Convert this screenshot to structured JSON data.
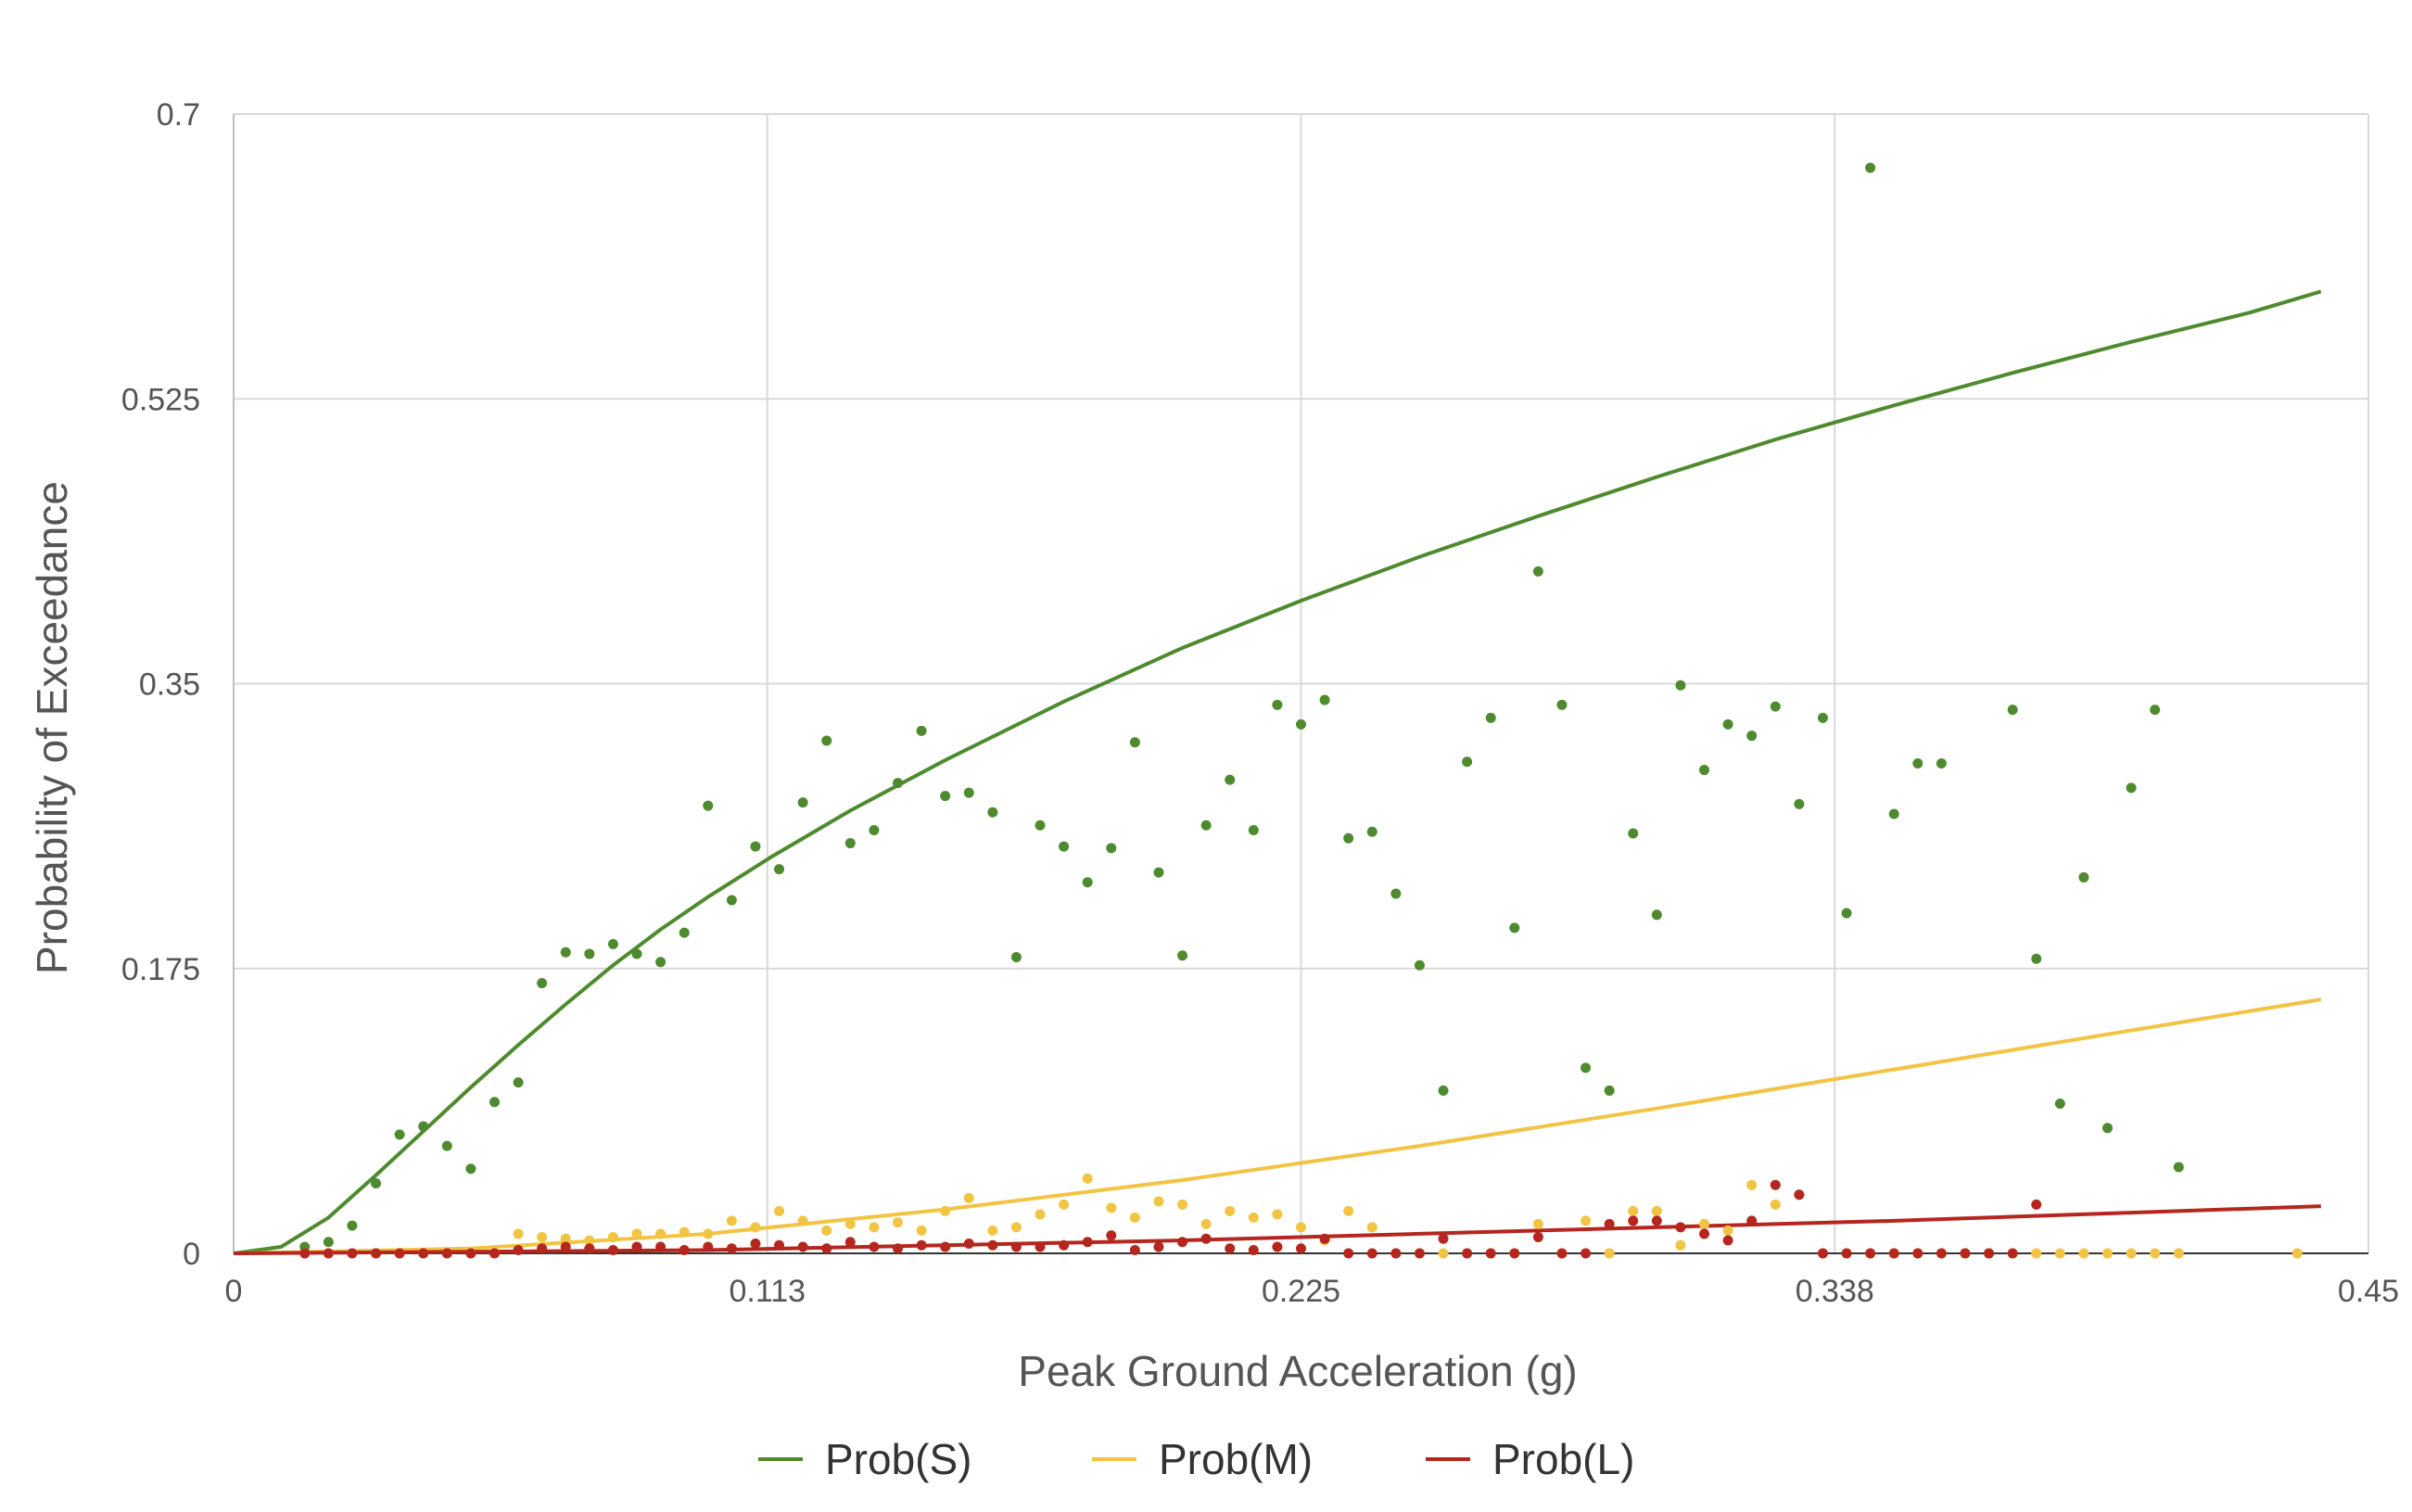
{
  "chart_data": {
    "type": "scatter",
    "title": "",
    "xlabel": "Peak Ground Acceleration (g)",
    "ylabel": "Probability of Exceedance",
    "xlim": [
      0,
      0.45
    ],
    "ylim": [
      0,
      0.7
    ],
    "x_ticks": [
      "0",
      "0.113",
      "0.225",
      "0.338",
      "0.45"
    ],
    "y_ticks": [
      "0",
      "0.175",
      "0.35",
      "0.525",
      "0.7"
    ],
    "grid": true,
    "legend_position": "bottom",
    "colors": {
      "Prob(S)": "#4e8a2e",
      "Prob(M)": "#f2c444",
      "Prob(L)": "#b5261e"
    },
    "series": [
      {
        "name": "Prob(S)",
        "fitted_curve": {
          "x": [
            0,
            0.01,
            0.02,
            0.03,
            0.04,
            0.05,
            0.06,
            0.07,
            0.08,
            0.09,
            0.1,
            0.113,
            0.13,
            0.15,
            0.175,
            0.2,
            0.225,
            0.25,
            0.275,
            0.3,
            0.325,
            0.35,
            0.375,
            0.4,
            0.425,
            0.44
          ],
          "y": [
            0,
            0.004,
            0.022,
            0.048,
            0.075,
            0.102,
            0.128,
            0.153,
            0.177,
            0.199,
            0.219,
            0.243,
            0.272,
            0.303,
            0.339,
            0.372,
            0.401,
            0.428,
            0.453,
            0.477,
            0.5,
            0.521,
            0.541,
            0.56,
            0.578,
            0.591
          ]
        },
        "points": {
          "x": [
            0.015,
            0.02,
            0.025,
            0.03,
            0.035,
            0.04,
            0.045,
            0.05,
            0.055,
            0.06,
            0.065,
            0.07,
            0.075,
            0.08,
            0.085,
            0.09,
            0.095,
            0.1,
            0.105,
            0.11,
            0.115,
            0.12,
            0.125,
            0.13,
            0.135,
            0.14,
            0.145,
            0.15,
            0.155,
            0.16,
            0.165,
            0.17,
            0.175,
            0.18,
            0.185,
            0.19,
            0.195,
            0.2,
            0.205,
            0.21,
            0.215,
            0.22,
            0.225,
            0.23,
            0.235,
            0.24,
            0.245,
            0.25,
            0.255,
            0.26,
            0.265,
            0.27,
            0.275,
            0.28,
            0.285,
            0.29,
            0.295,
            0.3,
            0.305,
            0.31,
            0.315,
            0.32,
            0.325,
            0.33,
            0.335,
            0.34,
            0.345,
            0.35,
            0.355,
            0.36,
            0.365,
            0.37,
            0.375,
            0.38,
            0.385,
            0.39,
            0.395,
            0.4,
            0.405,
            0.41
          ],
          "y": [
            0.004,
            0.007,
            0.017,
            0.043,
            0.073,
            0.078,
            0.066,
            0.052,
            0.093,
            0.105,
            0.166,
            0.185,
            0.184,
            0.19,
            0.184,
            0.179,
            0.197,
            0.275,
            0.217,
            0.25,
            0.236,
            0.277,
            0.315,
            0.252,
            0.26,
            0.289,
            0.321,
            0.281,
            0.283,
            0.271,
            0.182,
            0.263,
            0.25,
            0.228,
            0.249,
            0.314,
            0.234,
            0.183,
            0.263,
            0.291,
            0.26,
            0.337,
            0.325,
            0.34,
            0.255,
            0.259,
            0.221,
            0.177,
            0.1,
            0.302,
            0.329,
            0.2,
            0.419,
            0.337,
            0.114,
            0.1,
            0.258,
            0.208,
            0.349,
            0.297,
            0.325,
            0.318,
            0.336,
            0.276,
            0.329,
            0.209,
            0.667,
            0.27,
            0.301,
            0.301,
            0.0,
            0.0,
            0.334,
            0.181,
            0.092,
            0.231,
            0.077,
            0.286,
            0.334,
            0.053
          ]
        }
      },
      {
        "name": "Prob(M)",
        "fitted_curve": {
          "x": [
            0,
            0.05,
            0.1,
            0.15,
            0.2,
            0.25,
            0.3,
            0.35,
            0.4,
            0.44
          ],
          "y": [
            0,
            0.003,
            0.012,
            0.027,
            0.045,
            0.066,
            0.089,
            0.113,
            0.137,
            0.156
          ]
        },
        "points": {
          "x": [
            0.015,
            0.02,
            0.025,
            0.03,
            0.035,
            0.04,
            0.045,
            0.05,
            0.055,
            0.06,
            0.065,
            0.07,
            0.075,
            0.08,
            0.085,
            0.09,
            0.095,
            0.1,
            0.105,
            0.11,
            0.115,
            0.12,
            0.125,
            0.13,
            0.135,
            0.14,
            0.145,
            0.15,
            0.155,
            0.16,
            0.165,
            0.17,
            0.175,
            0.18,
            0.185,
            0.19,
            0.195,
            0.2,
            0.205,
            0.21,
            0.215,
            0.22,
            0.225,
            0.23,
            0.235,
            0.24,
            0.245,
            0.25,
            0.255,
            0.26,
            0.265,
            0.27,
            0.275,
            0.28,
            0.285,
            0.29,
            0.295,
            0.3,
            0.305,
            0.31,
            0.315,
            0.32,
            0.325,
            0.33,
            0.335,
            0.34,
            0.345,
            0.35,
            0.355,
            0.36,
            0.365,
            0.37,
            0.375,
            0.38,
            0.385,
            0.39,
            0.395,
            0.4,
            0.405,
            0.41,
            0.435
          ],
          "y": [
            0,
            0,
            0,
            0,
            0,
            0,
            0,
            0,
            0,
            0.012,
            0.01,
            0.009,
            0.008,
            0.01,
            0.012,
            0.012,
            0.013,
            0.012,
            0.02,
            0.016,
            0.026,
            0.02,
            0.014,
            0.018,
            0.016,
            0.019,
            0.014,
            0.026,
            0.034,
            0.014,
            0.016,
            0.024,
            0.03,
            0.046,
            0.028,
            0.022,
            0.032,
            0.03,
            0.018,
            0.026,
            0.022,
            0.024,
            0.016,
            0.008,
            0.026,
            0.016,
            0,
            0,
            0,
            0,
            0,
            0,
            0.018,
            0,
            0.02,
            0,
            0.026,
            0.026,
            0.005,
            0.018,
            0.014,
            0.042,
            0.03,
            0.036,
            0,
            0,
            0,
            0,
            0,
            0,
            0,
            0,
            0,
            0,
            0,
            0,
            0,
            0,
            0,
            0,
            0
          ]
        }
      },
      {
        "name": "Prob(L)",
        "fitted_curve": {
          "x": [
            0,
            0.05,
            0.1,
            0.15,
            0.2,
            0.25,
            0.3,
            0.35,
            0.4,
            0.44
          ],
          "y": [
            0,
            0.001,
            0.002,
            0.005,
            0.008,
            0.012,
            0.016,
            0.02,
            0.025,
            0.029
          ]
        },
        "points": {
          "x": [
            0.015,
            0.02,
            0.025,
            0.03,
            0.035,
            0.04,
            0.045,
            0.05,
            0.055,
            0.06,
            0.065,
            0.07,
            0.075,
            0.08,
            0.085,
            0.09,
            0.095,
            0.1,
            0.105,
            0.11,
            0.115,
            0.12,
            0.125,
            0.13,
            0.135,
            0.14,
            0.145,
            0.15,
            0.155,
            0.16,
            0.165,
            0.17,
            0.175,
            0.18,
            0.185,
            0.19,
            0.195,
            0.2,
            0.205,
            0.21,
            0.215,
            0.22,
            0.225,
            0.23,
            0.235,
            0.24,
            0.245,
            0.25,
            0.255,
            0.26,
            0.265,
            0.27,
            0.275,
            0.28,
            0.285,
            0.29,
            0.295,
            0.3,
            0.305,
            0.31,
            0.315,
            0.32,
            0.325,
            0.33,
            0.335,
            0.34,
            0.345,
            0.35,
            0.355,
            0.36,
            0.365,
            0.37,
            0.375,
            0.38
          ],
          "y": [
            0,
            0,
            0,
            0,
            0,
            0,
            0,
            0,
            0,
            0.002,
            0.003,
            0.004,
            0.003,
            0.002,
            0.004,
            0.004,
            0.002,
            0.004,
            0.003,
            0.006,
            0.005,
            0.004,
            0.003,
            0.007,
            0.004,
            0.003,
            0.005,
            0.004,
            0.006,
            0.005,
            0.004,
            0.004,
            0.005,
            0.007,
            0.011,
            0.002,
            0.004,
            0.007,
            0.009,
            0.003,
            0.002,
            0.004,
            0.003,
            0.009,
            0,
            0,
            0,
            0,
            0.009,
            0,
            0,
            0,
            0.01,
            0,
            0,
            0.018,
            0.02,
            0.02,
            0.016,
            0.012,
            0.008,
            0.02,
            0.042,
            0.036,
            0,
            0,
            0,
            0,
            0,
            0,
            0,
            0,
            0,
            0.03
          ]
        }
      }
    ]
  }
}
